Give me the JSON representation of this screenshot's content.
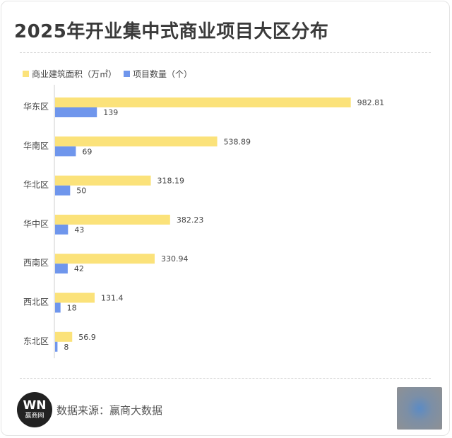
{
  "title": "2025年开业集中式商业项目大区分布",
  "legend": [
    {
      "label": "商业建筑面积（万㎡）",
      "color": "#fbe27a"
    },
    {
      "label": "项目数量（个）",
      "color": "#6f96ec"
    }
  ],
  "source": {
    "logo_mark": "WN",
    "logo_text": "赢商网",
    "text": "数据来源：赢商大数据"
  },
  "chart_data": {
    "type": "bar",
    "orientation": "horizontal",
    "categories": [
      "华东区",
      "华南区",
      "华北区",
      "华中区",
      "西南区",
      "西北区",
      "东北区"
    ],
    "series": [
      {
        "name": "商业建筑面积（万㎡）",
        "color": "#fbe27a",
        "values": [
          982.81,
          538.89,
          318.19,
          382.23,
          330.94,
          131.4,
          56.9
        ],
        "labels": [
          "982.81",
          "538.89",
          "318.19",
          "382.23",
          "330.94",
          "131.4",
          "56.9"
        ]
      },
      {
        "name": "项目数量（个）",
        "color": "#6f96ec",
        "values": [
          139,
          69,
          50,
          43,
          42,
          18,
          8
        ],
        "labels": [
          "139",
          "69",
          "50",
          "43",
          "42",
          "18",
          "8"
        ]
      }
    ],
    "xlim": [
      0,
      1000
    ],
    "legend_position": "top-left",
    "grid": false
  }
}
